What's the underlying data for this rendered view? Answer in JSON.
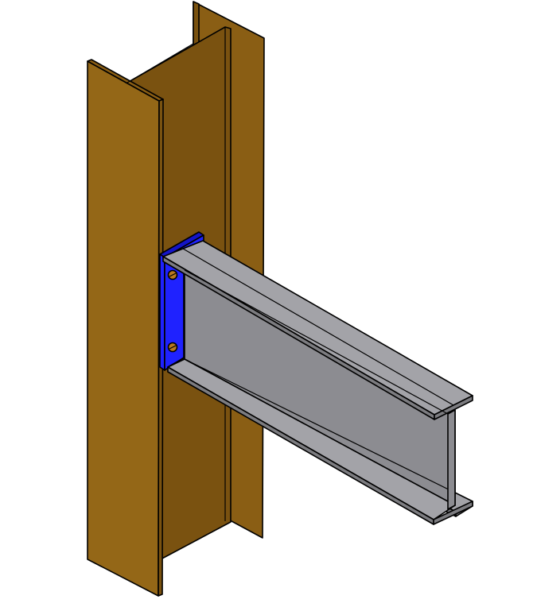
{
  "colors": {
    "background": "#ffffff",
    "column_face": "#8a5e14",
    "column_face_dark": "#7a5210",
    "column_face_light": "#946717",
    "beam_face": "#8c8c91",
    "beam_face_light": "#a3a3a8",
    "beam_face_dark": "#7c7c80",
    "plate": "#1f22ff",
    "plate_dark": "#1414c8",
    "bolt": "#b9791f",
    "outline": "#000000"
  }
}
